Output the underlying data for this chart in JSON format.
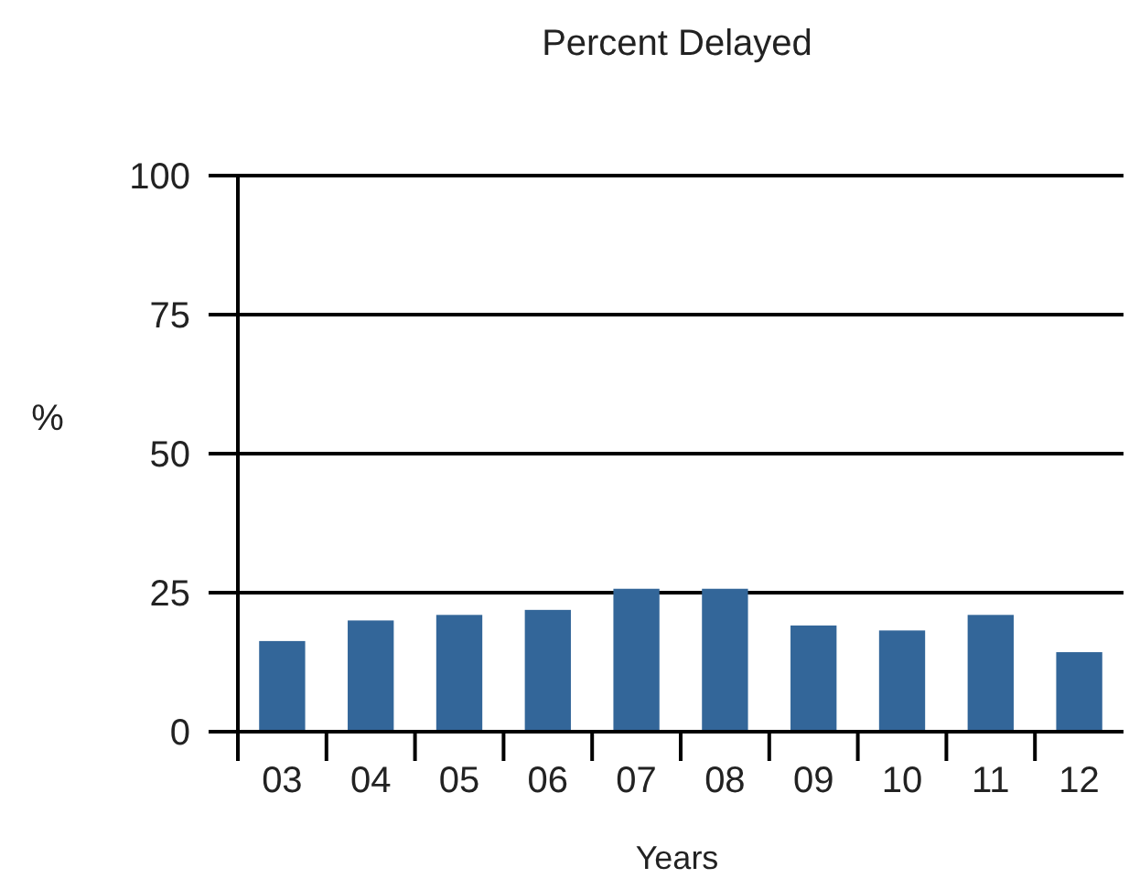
{
  "chart_data": {
    "type": "bar",
    "title": "Percent Delayed",
    "xlabel": "Years",
    "ylabel": "%",
    "categories": [
      "03",
      "04",
      "05",
      "06",
      "07",
      "08",
      "09",
      "10",
      "11",
      "12"
    ],
    "values": [
      16.3,
      20,
      21,
      21.9,
      25.7,
      25.7,
      19.1,
      18.2,
      21,
      14.3
    ],
    "color": "#336699",
    "ylim": [
      0,
      100
    ],
    "yticks": [
      0,
      25,
      50,
      75,
      100
    ],
    "grid": "y"
  }
}
